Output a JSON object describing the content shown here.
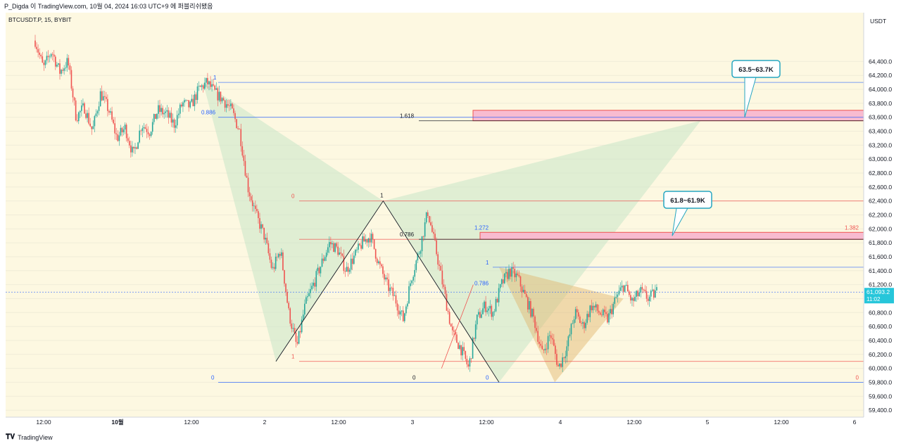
{
  "header": {
    "publish_line": "P_Digda 이 TradingView.com, 10월 04, 2024 16:03 UTC+9 에 퍼블리쉬됐음",
    "symbol_line": "BTCUSDT.P, 15, BYBIT"
  },
  "footer": {
    "brand": "TradingView",
    "logo_icon": "tradingview-logo-icon"
  },
  "chart_data": {
    "type": "candlestick",
    "currency_label": "USDT",
    "ylim": [
      59300,
      65100
    ],
    "y_ticks": [
      "64,400.0",
      "64,200.0",
      "64,000.0",
      "63,800.0",
      "63,600.0",
      "63,400.0",
      "63,200.0",
      "63,000.0",
      "62,800.0",
      "62,600.0",
      "62,400.0",
      "62,200.0",
      "62,000.0",
      "61,800.0",
      "61,600.0",
      "61,400.0",
      "61,200.0",
      "61,000.0",
      "60,800.0",
      "60,600.0",
      "60,400.0",
      "60,200.0",
      "60,000.0",
      "59,800.0",
      "59,600.0",
      "59,400.0"
    ],
    "x_ticks": [
      "12:00",
      "10월",
      "12:00",
      "2",
      "12:00",
      "3",
      "12:00",
      "4",
      "12:00",
      "5",
      "12:00",
      "6"
    ],
    "last_price": {
      "value": "61,093.2",
      "countdown": "11:02",
      "bg": "#26c6da"
    },
    "candles_up_color": "#26a69a",
    "candles_down_color": "#ef5350",
    "price_path": [
      64700,
      64300,
      64550,
      64250,
      64400,
      63600,
      63750,
      63400,
      63950,
      63700,
      63300,
      63450,
      63050,
      63500,
      63400,
      63700,
      63650,
      63500,
      63800,
      63750,
      64000,
      64100,
      63950,
      63850,
      63700,
      63400,
      62600,
      62200,
      61900,
      61400,
      61700,
      60800,
      60300,
      60900,
      61200,
      61500,
      61800,
      61700,
      61400,
      61600,
      61800,
      61900,
      61500,
      61200,
      61000,
      60700,
      61300,
      61700,
      62250,
      61700,
      61100,
      60500,
      60300,
      60000,
      60700,
      60900,
      60800,
      61200,
      61400,
      61300,
      61000,
      60700,
      60200,
      60500,
      60000,
      60300,
      60800,
      60600,
      60900,
      60800,
      60700,
      61000,
      61200,
      60950,
      61100,
      61000,
      61100
    ],
    "fib_levels": [
      {
        "label": "1",
        "y": 64100,
        "color": "#2962ff"
      },
      {
        "label": "0.886",
        "y": 63600,
        "color": "#2962ff"
      },
      {
        "label": "1.618",
        "y": 63550,
        "color": "#131722"
      },
      {
        "label": "0",
        "y": 62400,
        "color": "#ef5350"
      },
      {
        "label": "0.786",
        "y": 61850,
        "color": "#131722"
      },
      {
        "label": "1.272",
        "y": 61950,
        "color": "#2962ff"
      },
      {
        "label": "1.382",
        "y": 61950,
        "color": "#ef5350"
      },
      {
        "label": "1",
        "y": 61450,
        "color": "#2962ff"
      },
      {
        "label": "0.786",
        "y": 61150,
        "color": "#2962ff"
      },
      {
        "label": "1",
        "y": 60100,
        "color": "#ef5350"
      },
      {
        "label": "0",
        "y": 59800,
        "color": "#2962ff"
      },
      {
        "label": "0",
        "y": 59800,
        "color": "#131722"
      },
      {
        "label": "0",
        "y": 59800,
        "color": "#2962ff"
      },
      {
        "label": "0",
        "y": 59800,
        "color": "#ef5350"
      }
    ],
    "pattern_points": {
      "X": {
        "t": 0.23,
        "y": 64100
      },
      "A": {
        "t": 0.315,
        "y": 60100
      },
      "B": {
        "t": 0.44,
        "y": 62400
      },
      "C": {
        "t": 0.575,
        "y": 59800
      },
      "D": {
        "t": 0.81,
        "y": 63550
      }
    },
    "annotations": [
      {
        "label": "63.5~63.7K",
        "price_low": 63550,
        "price_high": 63700
      },
      {
        "label": "61.8~61.9K",
        "price_low": 61850,
        "price_high": 61950
      }
    ],
    "zone_color_pink": "#f8bbd0",
    "fill_green": "#c8e6c9",
    "fill_orange": "#ffcc80",
    "background_color": "#fdf8e1"
  }
}
